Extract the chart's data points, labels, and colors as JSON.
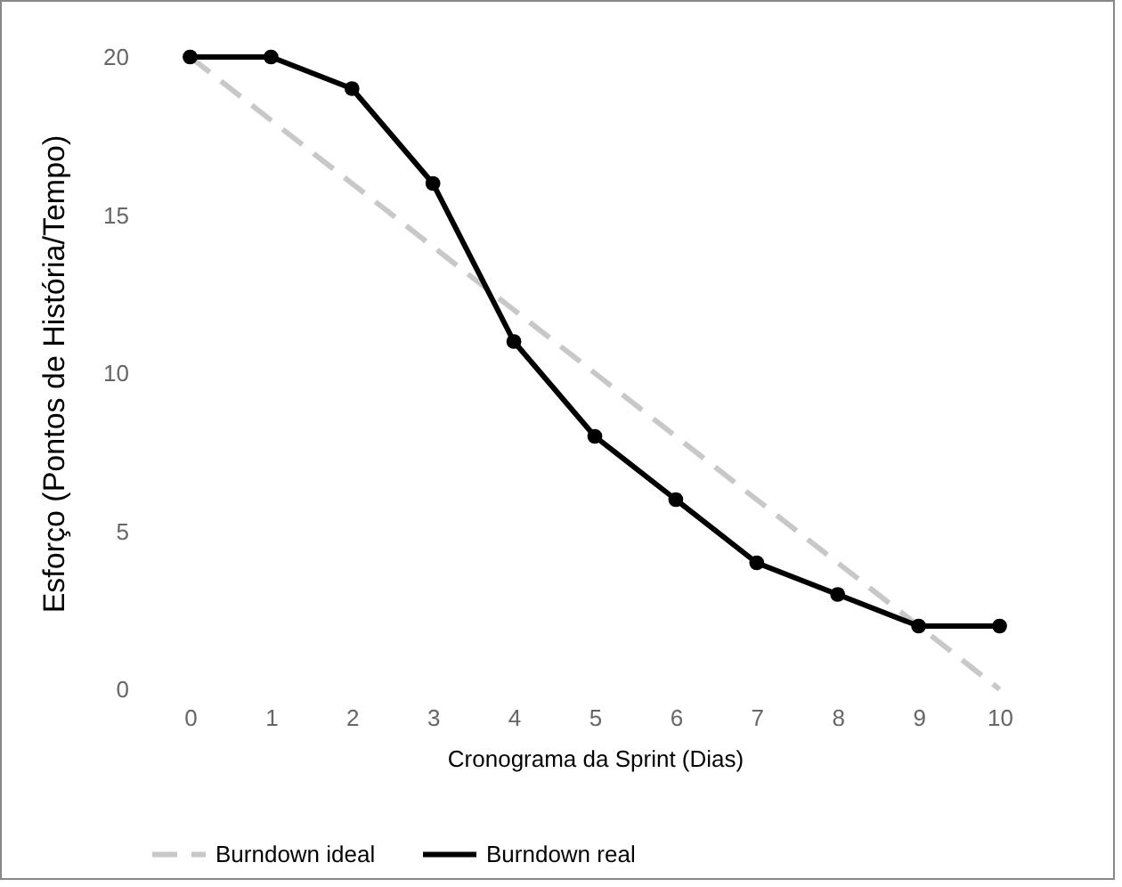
{
  "chart_data": {
    "type": "line",
    "xlabel": "Cronograma da Sprint (Dias)",
    "ylabel": "Esforço (Pontos de História/Tempo)",
    "categories": [
      "0",
      "1",
      "2",
      "3",
      "4",
      "5",
      "6",
      "7",
      "8",
      "9",
      "10"
    ],
    "series": [
      {
        "name": "Burndown ideal",
        "color": "#c8c8c8",
        "line_style": "dashed",
        "marker": "none",
        "values": [
          20,
          18,
          16,
          14,
          12,
          10,
          8,
          6,
          4,
          2,
          0
        ]
      },
      {
        "name": "Burndown real",
        "color": "#000000",
        "line_style": "solid",
        "marker": "circle",
        "values": [
          20,
          20,
          19,
          16,
          11,
          8,
          6,
          4,
          3,
          2,
          2
        ]
      }
    ],
    "ylim": [
      0,
      20
    ],
    "yticks": [
      0,
      5,
      10,
      15,
      20
    ],
    "grid": false,
    "legend": "bottom"
  }
}
